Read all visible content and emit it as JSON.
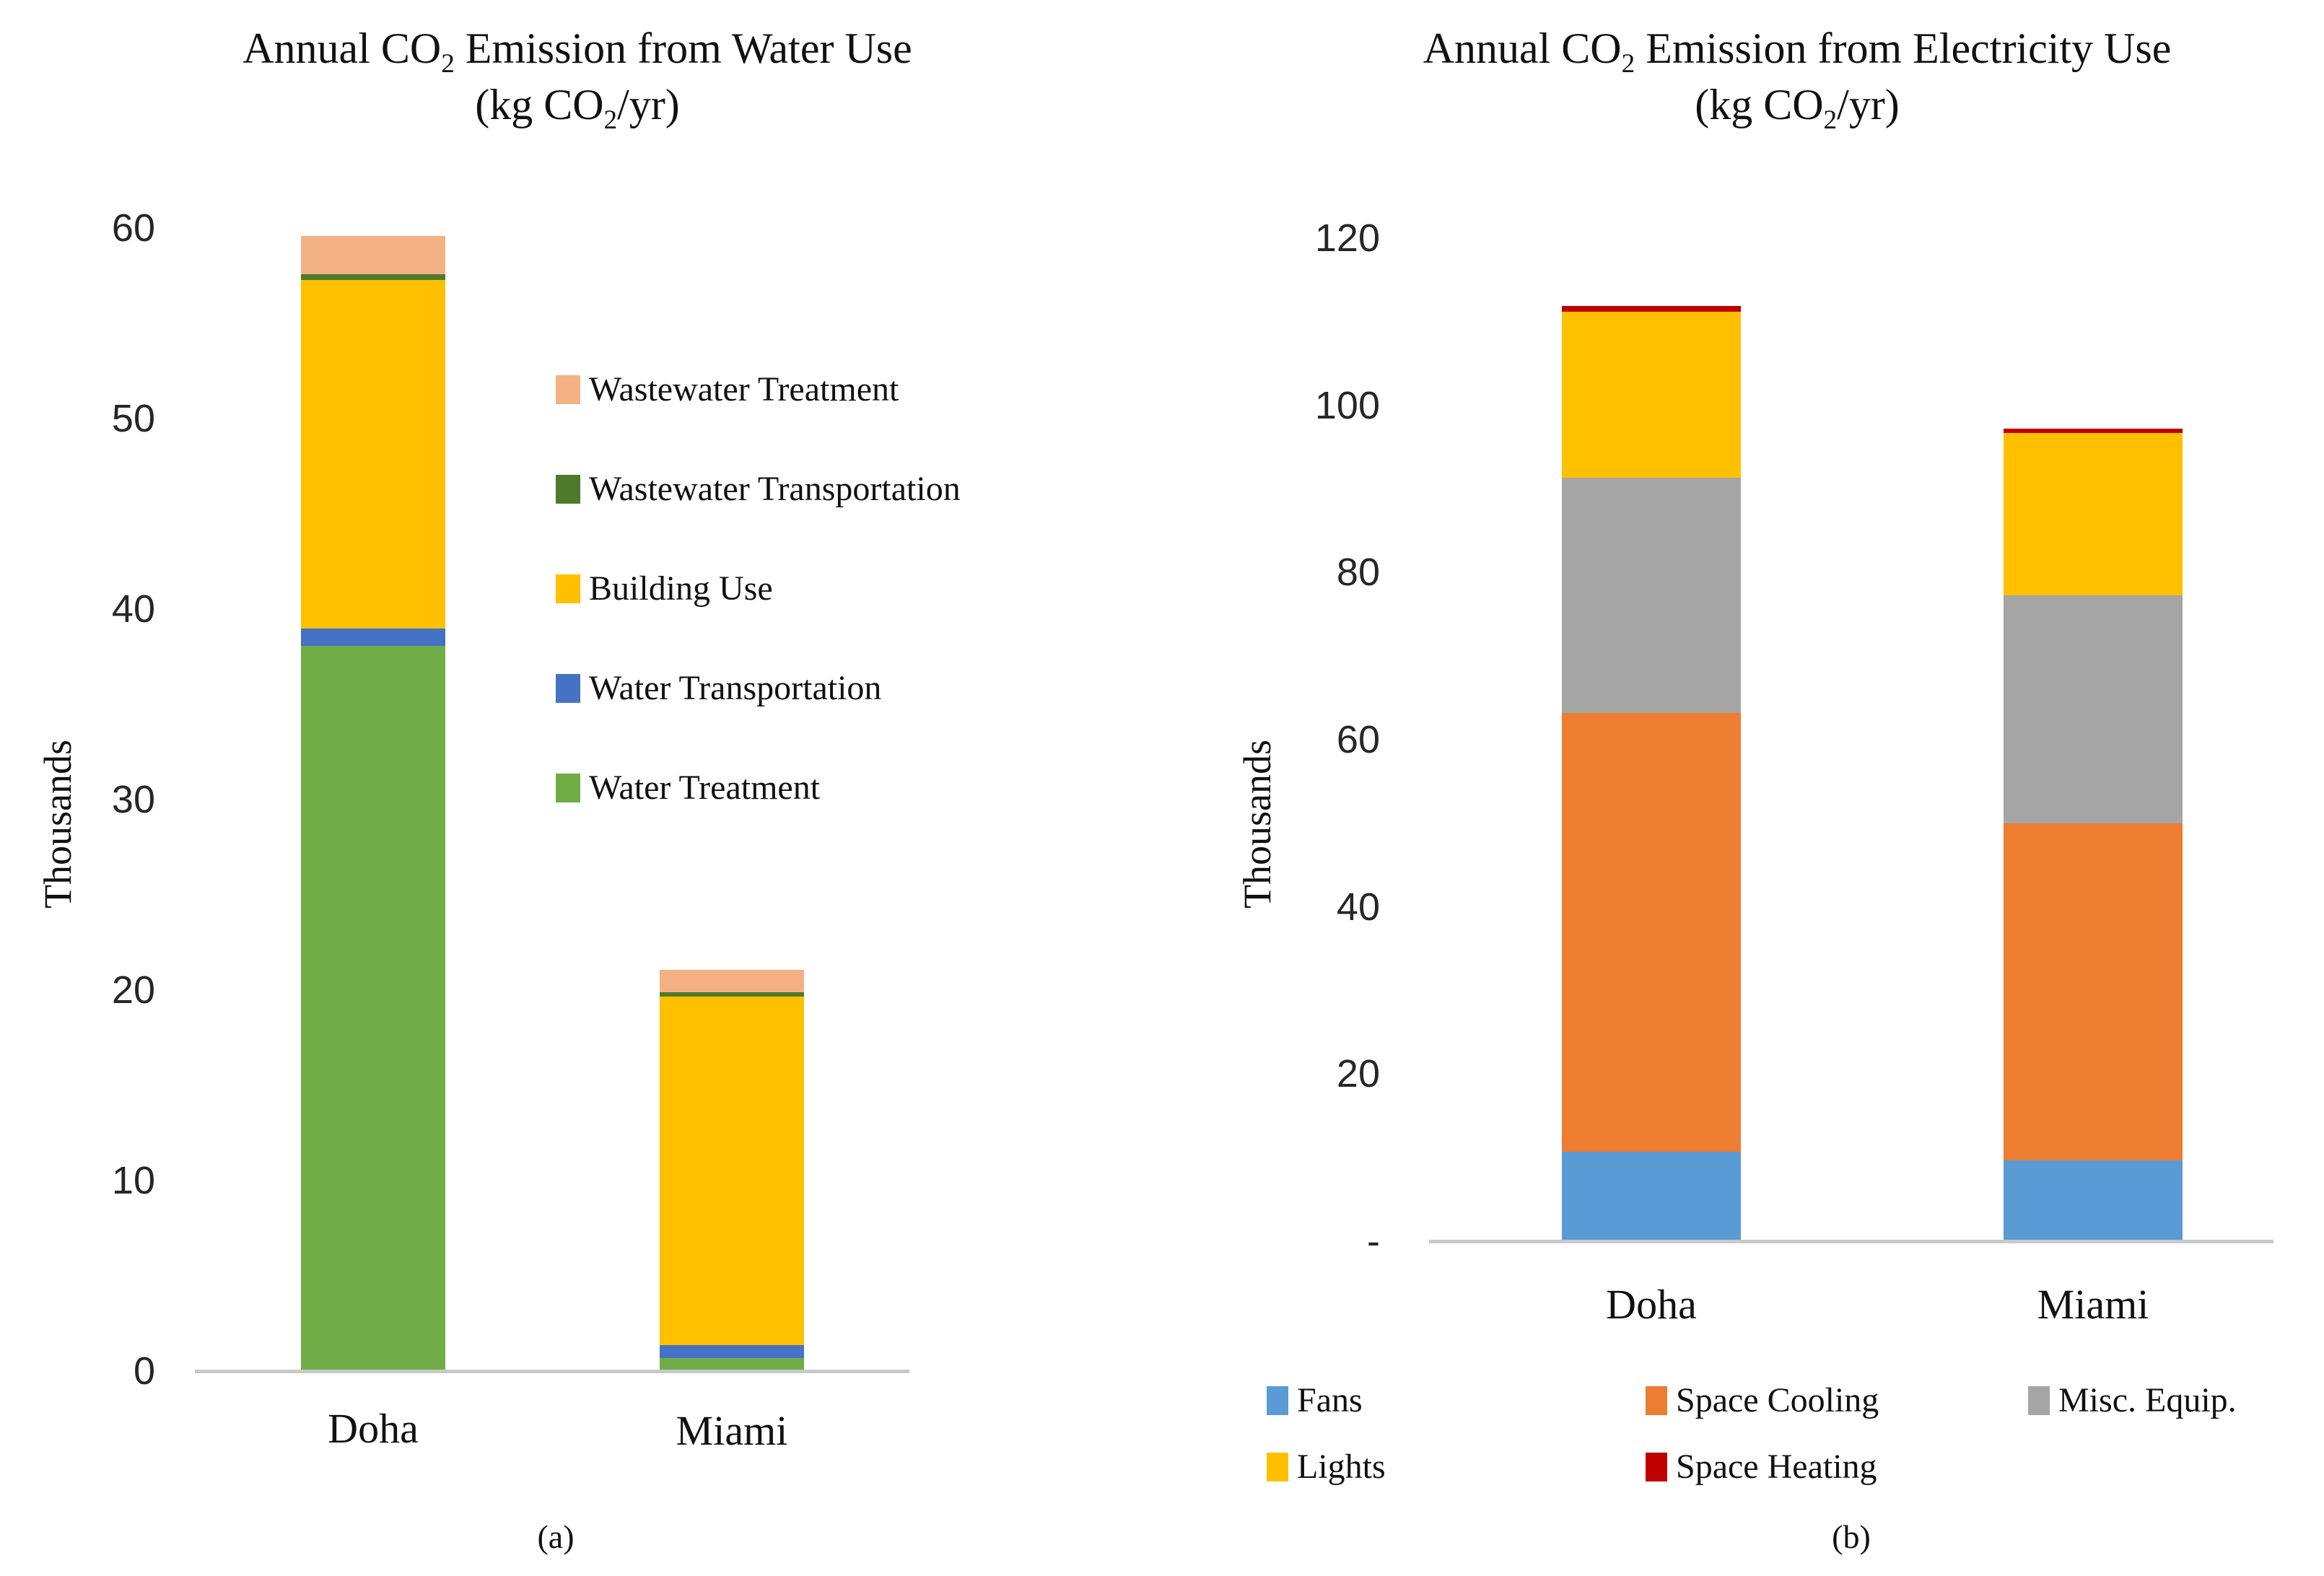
{
  "figure": {
    "captions": {
      "a": "(a)",
      "b": "(b)"
    }
  },
  "chart_data": [
    {
      "id": "water-use-chart",
      "type": "bar",
      "stacked": true,
      "title": {
        "pre": "Annual CO",
        "sub": "2",
        "post": " Emission from Water Use"
      },
      "subtitle": {
        "pre": "(kg CO",
        "sub": "2",
        "post": "/yr)"
      },
      "ylabel": "Thousands",
      "ylim": [
        0,
        60
      ],
      "grid": false,
      "legend_position": "right-of-plot",
      "yticks": [
        {
          "label": "60",
          "value": 60
        },
        {
          "label": "50",
          "value": 50
        },
        {
          "label": "40",
          "value": 40
        },
        {
          "label": "30",
          "value": 30
        },
        {
          "label": "20",
          "value": 20
        },
        {
          "label": "10",
          "value": 10
        },
        {
          "label": "0",
          "value": 0
        }
      ],
      "categories": [
        "Doha",
        "Miami"
      ],
      "series": [
        {
          "name": "Water Treatment",
          "color": "#70AD47",
          "values": [
            38.0,
            0.6
          ]
        },
        {
          "name": "Water Transportation",
          "color": "#4472C4",
          "values": [
            0.9,
            0.7
          ]
        },
        {
          "name": "Building Use",
          "color": "#FFC000",
          "values": [
            18.3,
            18.3
          ]
        },
        {
          "name": "Wastewater Transportation",
          "color": "#4E7A2B",
          "values": [
            0.3,
            0.2
          ]
        },
        {
          "name": "Wastewater Treatment",
          "color": "#F4B183",
          "values": [
            2.0,
            1.2
          ]
        }
      ],
      "legend": [
        {
          "label": "Wastewater Treatment",
          "color": "#F4B183"
        },
        {
          "label": "Wastewater Transportation",
          "color": "#4E7A2B"
        },
        {
          "label": "Building Use",
          "color": "#FFC000"
        },
        {
          "label": "Water Transportation",
          "color": "#4472C4"
        },
        {
          "label": "Water Treatment",
          "color": "#70AD47"
        }
      ]
    },
    {
      "id": "electricity-use-chart",
      "type": "bar",
      "stacked": true,
      "title": {
        "pre": "Annual CO",
        "sub": "2",
        "post": " Emission from Electricity Use"
      },
      "subtitle": {
        "pre": "(kg CO",
        "sub": "2",
        "post": "/yr)"
      },
      "ylabel": "Thousands",
      "ylim": [
        0,
        120
      ],
      "grid": false,
      "legend_position": "bottom",
      "yticks": [
        {
          "label": "120",
          "value": 120
        },
        {
          "label": "100",
          "value": 100
        },
        {
          "label": "80",
          "value": 80
        },
        {
          "label": "60",
          "value": 60
        },
        {
          "label": "40",
          "value": 40
        },
        {
          "label": "20",
          "value": 20
        },
        {
          "label": "-",
          "value": 0
        }
      ],
      "categories": [
        "Doha",
        "Miami"
      ],
      "series": [
        {
          "name": "Fans",
          "color": "#5B9BD5",
          "values": [
            10.5,
            9.5
          ]
        },
        {
          "name": "Space Cooling",
          "color": "#ED7D31",
          "values": [
            52.5,
            40.3
          ]
        },
        {
          "name": "Misc. Equip.",
          "color": "#A5A5A5",
          "values": [
            28.2,
            27.3
          ]
        },
        {
          "name": "Lights",
          "color": "#FFC000",
          "values": [
            19.8,
            19.4
          ]
        },
        {
          "name": "Space Heating",
          "color": "#C00000",
          "values": [
            0.7,
            0.5
          ]
        }
      ],
      "legend": [
        {
          "label": "Fans",
          "color": "#5B9BD5"
        },
        {
          "label": "Space Cooling",
          "color": "#ED7D31"
        },
        {
          "label": "Misc. Equip.",
          "color": "#A5A5A5"
        },
        {
          "label": "Lights",
          "color": "#FFC000"
        },
        {
          "label": "Space Heating",
          "color": "#C00000"
        }
      ]
    }
  ]
}
